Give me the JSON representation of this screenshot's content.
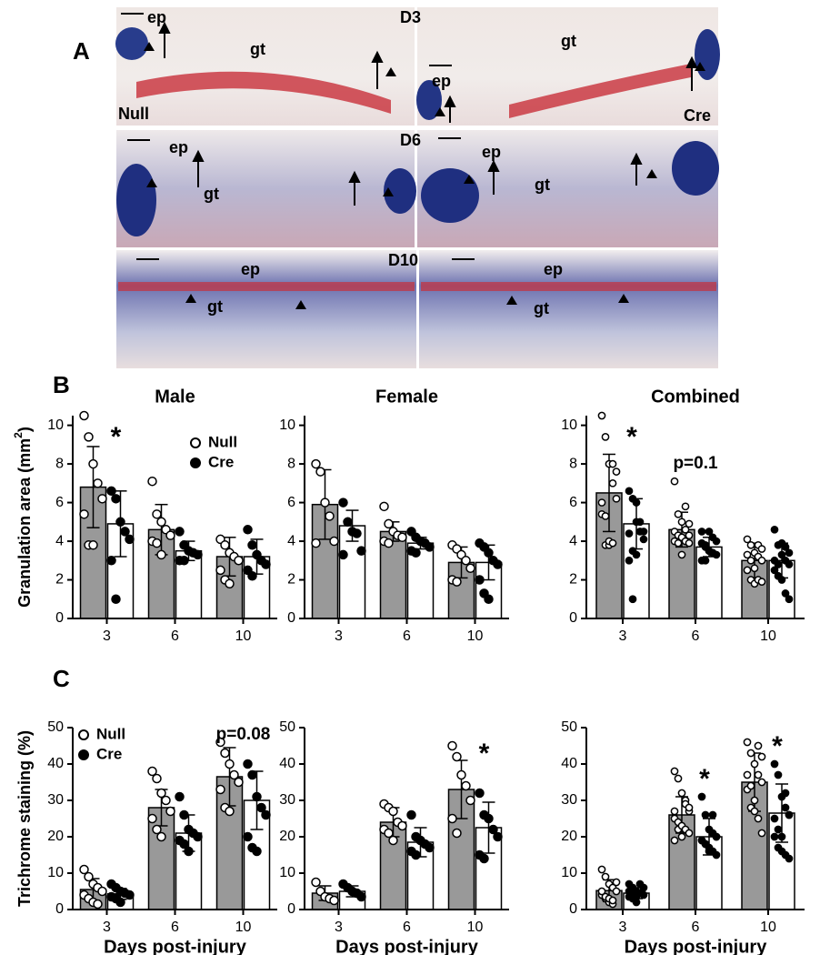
{
  "panel_a": {
    "label": "A",
    "days": [
      "D3",
      "D6",
      "D10"
    ],
    "groups": [
      "Null",
      "Cre"
    ],
    "epidermis": "ep",
    "granulation": "gt"
  },
  "chart_data": [
    {
      "type": "bar",
      "panel": "B",
      "title": "Male",
      "ylabel": [
        "Granulation area (mm",
        "2",
        ")"
      ],
      "categories": [
        "3",
        "6",
        "10"
      ],
      "ylim": [
        0,
        10.5
      ],
      "yticks": [
        0,
        2,
        4,
        6,
        8,
        10
      ],
      "legend": "upper right",
      "series": [
        {
          "name": "Null",
          "color": "#999999",
          "marker_fill": "#ffffff",
          "values": [
            6.8,
            4.6,
            3.2
          ],
          "errors": [
            2.1,
            1.3,
            1.0
          ],
          "points": [
            [
              10.5,
              9.4,
              8.0,
              7.0,
              6.2,
              5.4,
              3.8,
              3.8
            ],
            [
              7.1,
              5.4,
              5.0,
              4.6,
              4.3,
              4.0,
              3.9,
              3.3
            ],
            [
              4.1,
              3.8,
              3.4,
              3.2,
              3.0,
              2.5,
              2.0,
              1.8
            ]
          ]
        },
        {
          "name": "Cre",
          "color": "#ffffff",
          "marker_fill": "#000000",
          "values": [
            4.9,
            3.5,
            3.2
          ],
          "errors": [
            1.7,
            0.5,
            0.9
          ],
          "points": [
            [
              6.6,
              6.2,
              5.0,
              4.5,
              4.1,
              3.0,
              1.0
            ],
            [
              4.5,
              3.8,
              3.5,
              3.4,
              3.3,
              3.0,
              3.0
            ],
            [
              4.6,
              3.8,
              3.3,
              3.0,
              2.8,
              2.5,
              2.2
            ]
          ]
        }
      ],
      "annotations": [
        {
          "text": "*",
          "category": 0,
          "y": 9.6
        }
      ]
    },
    {
      "type": "bar",
      "title": "Female",
      "categories": [
        "3",
        "6",
        "10"
      ],
      "ylim": [
        0,
        10.5
      ],
      "yticks": [
        0,
        2,
        4,
        6,
        8,
        10
      ],
      "series": [
        {
          "color": "#999999",
          "marker_fill": "#ffffff",
          "values": [
            5.9,
            4.5,
            2.9
          ],
          "errors": [
            1.8,
            0.5,
            0.8
          ],
          "points": [
            [
              8.0,
              7.6,
              6.0,
              5.3,
              4.0,
              3.9
            ],
            [
              5.8,
              4.9,
              4.5,
              4.3,
              4.2,
              4.0,
              3.9
            ],
            [
              3.8,
              3.6,
              3.3,
              3.0,
              2.6,
              2.0,
              1.9
            ]
          ]
        },
        {
          "color": "#ffffff",
          "marker_fill": "#000000",
          "values": [
            4.8,
            3.9,
            2.9
          ],
          "errors": [
            0.8,
            0.3,
            0.9
          ],
          "points": [
            [
              6.0,
              5.0,
              4.5,
              4.4,
              3.5,
              3.3
            ],
            [
              4.5,
              4.2,
              4.0,
              3.9,
              3.7,
              3.5,
              3.4
            ],
            [
              3.9,
              3.7,
              3.4,
              3.0,
              2.8,
              2.0,
              1.3,
              1.0
            ]
          ]
        }
      ]
    },
    {
      "type": "bar",
      "title": "Combined",
      "categories": [
        "3",
        "6",
        "10"
      ],
      "ylim": [
        0,
        10.5
      ],
      "yticks": [
        0,
        2,
        4,
        6,
        8,
        10
      ],
      "series": [
        {
          "color": "#999999",
          "marker_fill": "#ffffff",
          "values": [
            6.5,
            4.6,
            3.0
          ],
          "errors": [
            2.0,
            0.9,
            0.9
          ],
          "points": [
            [
              10.5,
              9.4,
              8.0,
              7.0,
              6.2,
              5.4,
              3.8,
              3.8,
              8.0,
              7.6,
              6.0,
              5.3,
              4.0,
              3.9
            ],
            [
              7.1,
              5.4,
              5.0,
              4.6,
              4.3,
              4.0,
              3.9,
              3.3,
              5.8,
              4.9,
              4.5,
              4.3,
              4.2,
              4.0,
              3.9
            ],
            [
              4.1,
              3.8,
              3.4,
              3.2,
              3.0,
              2.5,
              2.0,
              1.8,
              3.8,
              3.6,
              3.3,
              3.0,
              2.6,
              2.0,
              1.9
            ]
          ]
        },
        {
          "color": "#ffffff",
          "marker_fill": "#000000",
          "values": [
            4.9,
            3.7,
            3.0
          ],
          "errors": [
            1.3,
            0.5,
            0.9
          ],
          "points": [
            [
              6.6,
              6.2,
              5.0,
              4.5,
              4.1,
              3.0,
              1.0,
              6.0,
              5.0,
              4.5,
              4.4,
              3.5,
              3.3
            ],
            [
              4.5,
              3.8,
              3.5,
              3.4,
              3.3,
              3.0,
              3.0,
              4.5,
              4.2,
              4.0,
              3.9,
              3.7,
              3.5,
              3.4
            ],
            [
              4.6,
              3.8,
              3.3,
              3.0,
              2.8,
              2.5,
              2.2,
              3.9,
              3.7,
              3.4,
              3.0,
              2.8,
              2.0,
              1.3,
              1.0
            ]
          ]
        }
      ],
      "annotations": [
        {
          "text": "*",
          "category": 0,
          "y": 9.6
        },
        {
          "text": "p=0.1",
          "category": 1,
          "y": 8.0
        }
      ]
    },
    {
      "type": "bar",
      "panel": "C",
      "ylabel": "Trichrome staining (%)",
      "xlabel": "Days post-injury",
      "categories": [
        "3",
        "6",
        "10"
      ],
      "ylim": [
        0,
        50
      ],
      "yticks": [
        0,
        10,
        20,
        30,
        40,
        50
      ],
      "legend": "upper left",
      "series": [
        {
          "name": "Null",
          "color": "#999999",
          "marker_fill": "#ffffff",
          "values": [
            5.5,
            28,
            36.5
          ],
          "errors": [
            3,
            5,
            8
          ],
          "points": [
            [
              11,
              9,
              7,
              6,
              5,
              4,
              3,
              2,
              1.5
            ],
            [
              38,
              36,
              32,
              30,
              27,
              25,
              22,
              20
            ],
            [
              46,
              43,
              40,
              37,
              35,
              33,
              28,
              27
            ]
          ]
        },
        {
          "name": "Cre",
          "color": "#ffffff",
          "marker_fill": "#000000",
          "values": [
            4.3,
            21,
            30
          ],
          "errors": [
            1.5,
            5,
            8
          ],
          "points": [
            [
              7,
              6,
              5,
              4.5,
              4,
              3.5,
              3,
              2
            ],
            [
              31,
              26,
              22,
              21,
              20,
              19,
              18,
              16
            ],
            [
              40,
              37,
              31,
              28,
              26,
              20,
              17,
              16
            ]
          ]
        }
      ],
      "annotations": [
        {
          "text": "p=0.08",
          "category": 2,
          "y": 48
        }
      ]
    },
    {
      "type": "bar",
      "xlabel": "Days post-injury",
      "categories": [
        "3",
        "6",
        "10"
      ],
      "ylim": [
        0,
        50
      ],
      "yticks": [
        0,
        10,
        20,
        30,
        40,
        50
      ],
      "series": [
        {
          "color": "#999999",
          "marker_fill": "#ffffff",
          "values": [
            4.5,
            24,
            33
          ],
          "errors": [
            2,
            4,
            8
          ],
          "points": [
            [
              7.5,
              5,
              3.5,
              3,
              2.5
            ],
            [
              29,
              28,
              27,
              24,
              23,
              22,
              21,
              19
            ],
            [
              45,
              42,
              37,
              34,
              30,
              25,
              21
            ]
          ]
        },
        {
          "color": "#ffffff",
          "marker_fill": "#000000",
          "values": [
            5,
            18.5,
            22.5
          ],
          "errors": [
            1.5,
            4,
            7
          ],
          "points": [
            [
              7,
              6,
              5,
              4.5,
              3.5
            ],
            [
              26,
              20,
              19,
              18,
              17,
              16,
              15
            ],
            [
              32,
              26,
              25,
              22,
              20,
              15,
              14
            ]
          ]
        }
      ],
      "annotations": [
        {
          "text": "*",
          "category": 2,
          "y": 44
        }
      ]
    },
    {
      "type": "bar",
      "xlabel": "Days post-injury",
      "categories": [
        "3",
        "6",
        "10"
      ],
      "ylim": [
        0,
        50
      ],
      "yticks": [
        0,
        10,
        20,
        30,
        40,
        50
      ],
      "series": [
        {
          "color": "#999999",
          "marker_fill": "#ffffff",
          "values": [
            5.2,
            26,
            35
          ],
          "errors": [
            3,
            5,
            8
          ],
          "points": [
            [
              11,
              9,
              7,
              6,
              5,
              4,
              3,
              2,
              1.5,
              7.5,
              5,
              3.5,
              3,
              2.5
            ],
            [
              38,
              36,
              32,
              30,
              27,
              25,
              22,
              20,
              29,
              28,
              27,
              24,
              23,
              22,
              21,
              19
            ],
            [
              46,
              43,
              40,
              37,
              35,
              33,
              28,
              27,
              45,
              42,
              37,
              34,
              30,
              25,
              21
            ]
          ]
        },
        {
          "color": "#ffffff",
          "marker_fill": "#000000",
          "values": [
            4.5,
            20,
            26.5
          ],
          "errors": [
            1.5,
            5,
            8
          ],
          "points": [
            [
              7,
              6,
              5,
              4.5,
              4,
              3.5,
              3,
              2,
              7,
              6,
              5,
              4.5,
              3.5
            ],
            [
              31,
              26,
              22,
              21,
              20,
              19,
              18,
              16,
              26,
              20,
              19,
              18,
              17,
              16,
              15
            ],
            [
              40,
              37,
              31,
              28,
              26,
              20,
              17,
              16,
              32,
              26,
              25,
              22,
              20,
              15,
              14
            ]
          ]
        }
      ],
      "annotations": [
        {
          "text": "*",
          "category": 1,
          "y": 37
        },
        {
          "text": "*",
          "category": 2,
          "y": 46
        }
      ]
    }
  ]
}
